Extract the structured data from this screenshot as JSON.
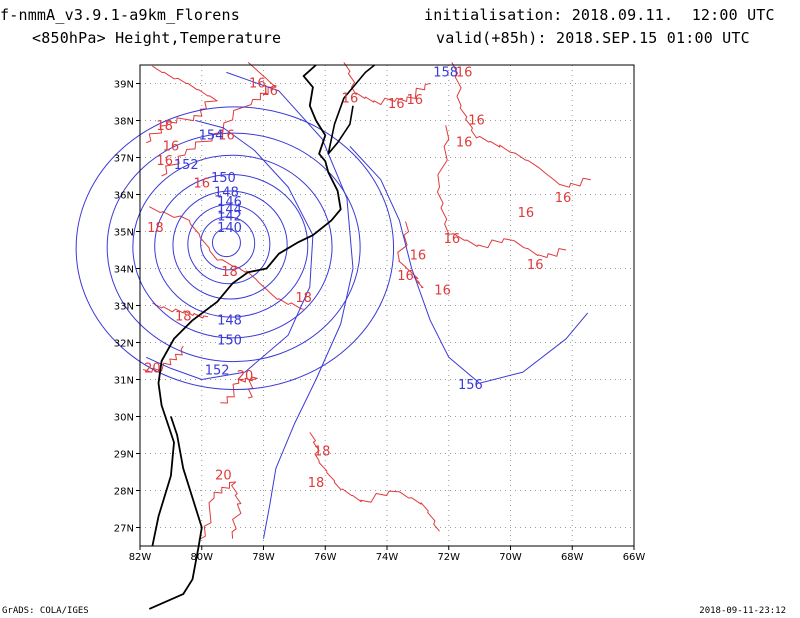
{
  "header": {
    "model": "f-nmmA_v3.9.1-a9km_Florens",
    "field": "<850hPa> Height,Temperature",
    "init": "initialisation: 2018.09.11.  12:00 UTC",
    "valid": "valid(+85h): 2018.SEP.15 01:00 UTC"
  },
  "footer": {
    "software": "GrADS: COLA/IGES",
    "timestamp": "2018-09-11-23:12"
  },
  "colors": {
    "height_contour": "#3a3ad8",
    "temperature_contour": "#e03a3a",
    "coastline": "#000000",
    "grid": "#9a9a9a"
  },
  "axes": {
    "lon_ticks": [
      "82W",
      "80W",
      "78W",
      "76W",
      "74W",
      "72W",
      "70W",
      "68W",
      "66W"
    ],
    "lat_ticks": [
      "27N",
      "28N",
      "29N",
      "30N",
      "31N",
      "32N",
      "33N",
      "34N",
      "35N",
      "36N",
      "37N",
      "38N",
      "39N"
    ]
  },
  "map": {
    "extent": {
      "lon_min": -82,
      "lon_max": -66,
      "lat_min": 26.5,
      "lat_max": 39.5
    },
    "grid": "dotted",
    "cyclone_center": {
      "lon": -79.2,
      "lat": 34.7
    },
    "height_labels": [
      {
        "text": "140",
        "lon": -79.1,
        "lat": 35.1
      },
      {
        "text": "142",
        "lon": -79.1,
        "lat": 35.4
      },
      {
        "text": "144",
        "lon": -79.1,
        "lat": 35.6
      },
      {
        "text": "146",
        "lon": -79.1,
        "lat": 35.8
      },
      {
        "text": "148",
        "lon": -79.2,
        "lat": 36.05
      },
      {
        "text": "150",
        "lon": -79.3,
        "lat": 36.45
      },
      {
        "text": "152",
        "lon": -80.5,
        "lat": 36.8
      },
      {
        "text": "154",
        "lon": -79.7,
        "lat": 37.6
      },
      {
        "text": "148",
        "lon": -79.1,
        "lat": 32.6
      },
      {
        "text": "150",
        "lon": -79.1,
        "lat": 32.05
      },
      {
        "text": "152",
        "lon": -79.5,
        "lat": 31.25
      },
      {
        "text": "156",
        "lon": -71.3,
        "lat": 30.85
      },
      {
        "text": "158",
        "lon": -72.1,
        "lat": 39.3
      }
    ],
    "temp_labels": [
      {
        "text": "16",
        "lon": -78.2,
        "lat": 39.0
      },
      {
        "text": "16",
        "lon": -77.8,
        "lat": 38.8
      },
      {
        "text": "16",
        "lon": -75.2,
        "lat": 38.6
      },
      {
        "text": "16",
        "lon": -73.7,
        "lat": 38.45
      },
      {
        "text": "16",
        "lon": -73.1,
        "lat": 38.55
      },
      {
        "text": "16",
        "lon": -71.5,
        "lat": 39.3
      },
      {
        "text": "16",
        "lon": -71.1,
        "lat": 38.0
      },
      {
        "text": "16",
        "lon": -71.5,
        "lat": 37.4
      },
      {
        "text": "16",
        "lon": -79.2,
        "lat": 37.6
      },
      {
        "text": "16",
        "lon": -81.2,
        "lat": 36.9
      },
      {
        "text": "16",
        "lon": -81.0,
        "lat": 37.3
      },
      {
        "text": "16",
        "lon": -80.0,
        "lat": 36.3
      },
      {
        "text": "16",
        "lon": -68.3,
        "lat": 35.9
      },
      {
        "text": "16",
        "lon": -69.5,
        "lat": 35.5
      },
      {
        "text": "16",
        "lon": -71.9,
        "lat": 34.8
      },
      {
        "text": "16",
        "lon": -73.0,
        "lat": 34.35
      },
      {
        "text": "16",
        "lon": -73.4,
        "lat": 33.8
      },
      {
        "text": "16",
        "lon": -72.2,
        "lat": 33.4
      },
      {
        "text": "16",
        "lon": -69.2,
        "lat": 34.1
      },
      {
        "text": "18",
        "lon": -81.2,
        "lat": 37.85
      },
      {
        "text": "18",
        "lon": -81.5,
        "lat": 35.1
      },
      {
        "text": "18",
        "lon": -79.1,
        "lat": 33.9
      },
      {
        "text": "18",
        "lon": -76.7,
        "lat": 33.2
      },
      {
        "text": "18",
        "lon": -80.6,
        "lat": 32.7
      },
      {
        "text": "18",
        "lon": -76.1,
        "lat": 29.05
      },
      {
        "text": "18",
        "lon": -76.3,
        "lat": 28.2
      },
      {
        "text": "20",
        "lon": -81.6,
        "lat": 31.3
      },
      {
        "text": "20",
        "lon": -78.6,
        "lat": 31.1
      },
      {
        "text": "20",
        "lon": -79.3,
        "lat": 28.4
      }
    ]
  }
}
